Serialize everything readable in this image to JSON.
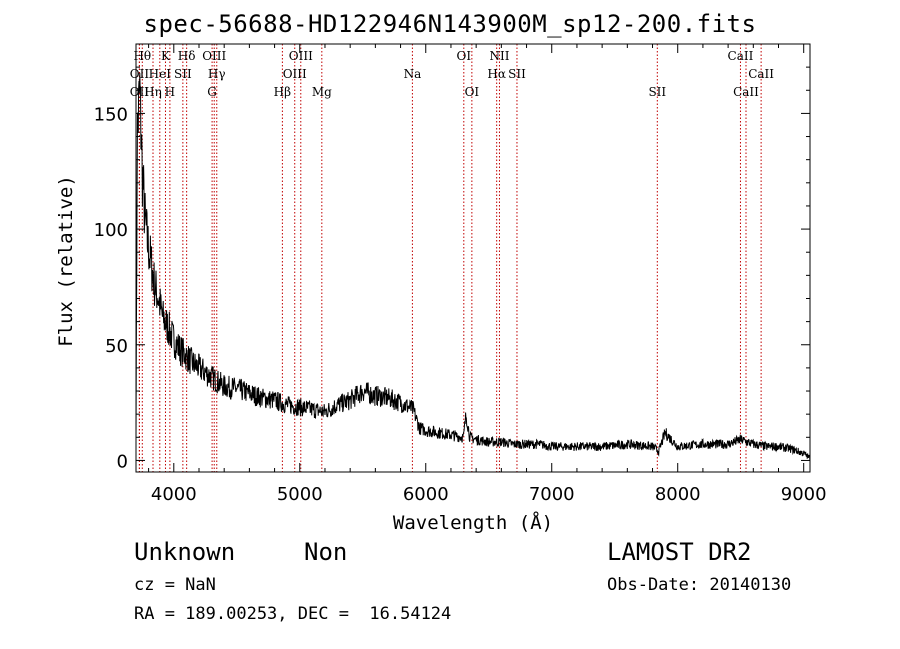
{
  "title": "spec-56688-HD122946N143900M_sp12-200.fits",
  "info": {
    "object_class": "Unknown",
    "object_subclass": "Non",
    "survey": "LAMOST DR2",
    "cz": "cz = NaN",
    "obs_date": "Obs-Date: 20140130",
    "radec": "RA = 189.00253, DEC =  16.54124"
  },
  "chart_data": {
    "type": "line",
    "xlabel": "Wavelength (Å)",
    "ylabel": "Flux (relative)",
    "xlim": [
      3700,
      9050
    ],
    "ylim": [
      -5,
      180
    ],
    "xticks": [
      4000,
      5000,
      6000,
      7000,
      8000,
      9000
    ],
    "yticks": [
      0,
      50,
      100,
      150
    ],
    "grid": false,
    "line_color": "#000000",
    "marker_color": "#c00000",
    "spectrum": {
      "x": [
        3700,
        3710,
        3730,
        3750,
        3770,
        3790,
        3820,
        3850,
        3880,
        3910,
        3950,
        4000,
        4050,
        4100,
        4150,
        4200,
        4250,
        4300,
        4350,
        4400,
        4500,
        4600,
        4700,
        4800,
        4900,
        5000,
        5100,
        5200,
        5300,
        5400,
        5500,
        5550,
        5580,
        5600,
        5700,
        5800,
        5900,
        5950,
        6000,
        6100,
        6200,
        6300,
        6320,
        6350,
        6400,
        6500,
        6600,
        6700,
        6800,
        6900,
        7000,
        7200,
        7400,
        7600,
        7800,
        7850,
        7900,
        8000,
        8200,
        8400,
        8500,
        8600,
        8700,
        8800,
        8900,
        9000,
        9050
      ],
      "y": [
        12,
        140,
        160,
        125,
        105,
        95,
        85,
        75,
        70,
        62,
        58,
        52,
        48,
        45,
        42,
        40,
        38,
        36,
        34,
        32,
        31,
        29,
        27,
        26,
        24,
        23,
        22,
        21,
        24,
        26,
        30,
        29,
        28,
        28,
        27,
        25,
        22,
        14,
        13,
        12,
        11,
        10,
        20,
        10,
        9,
        8,
        8,
        7,
        7,
        7,
        6,
        6,
        6,
        7,
        6,
        4,
        12,
        6,
        7,
        7,
        9,
        7,
        6,
        6,
        5,
        3,
        1
      ]
    },
    "lines": [
      {
        "label": "OII",
        "x": 3727,
        "row": 2
      },
      {
        "label": "OII",
        "x": 3727,
        "row": 3
      },
      {
        "label": "Hθ",
        "x": 3750,
        "row": 1
      },
      {
        "label": "Hη",
        "x": 3835,
        "row": 3
      },
      {
        "label": "HeI",
        "x": 3889,
        "row": 2
      },
      {
        "label": "K",
        "x": 3934,
        "row": 1
      },
      {
        "label": "H",
        "x": 3969,
        "row": 3
      },
      {
        "label": "SII",
        "x": 4072,
        "row": 2
      },
      {
        "label": "Hδ",
        "x": 4102,
        "row": 1
      },
      {
        "label": "OIII",
        "x": 4321,
        "row": 1
      },
      {
        "label": "Hγ",
        "x": 4341,
        "row": 2
      },
      {
        "label": "G",
        "x": 4304,
        "row": 3
      },
      {
        "label": "Hβ",
        "x": 4862,
        "row": 3
      },
      {
        "label": "OIII",
        "x": 4960,
        "row": 2
      },
      {
        "label": "OIII",
        "x": 5008,
        "row": 1
      },
      {
        "label": "Mg",
        "x": 5175,
        "row": 3
      },
      {
        "label": "Na",
        "x": 5894,
        "row": 2
      },
      {
        "label": "OI",
        "x": 6302,
        "row": 1
      },
      {
        "label": "OI",
        "x": 6366,
        "row": 3
      },
      {
        "label": "NII",
        "x": 6585,
        "row": 1
      },
      {
        "label": "Hα",
        "x": 6563,
        "row": 2
      },
      {
        "label": "SII",
        "x": 6724,
        "row": 2
      },
      {
        "label": "SII",
        "x": 7838,
        "row": 3
      },
      {
        "label": "CaII",
        "x": 8498,
        "row": 1
      },
      {
        "label": "CaII",
        "x": 8542,
        "row": 3
      },
      {
        "label": "CaII",
        "x": 8662,
        "row": 2
      }
    ]
  }
}
